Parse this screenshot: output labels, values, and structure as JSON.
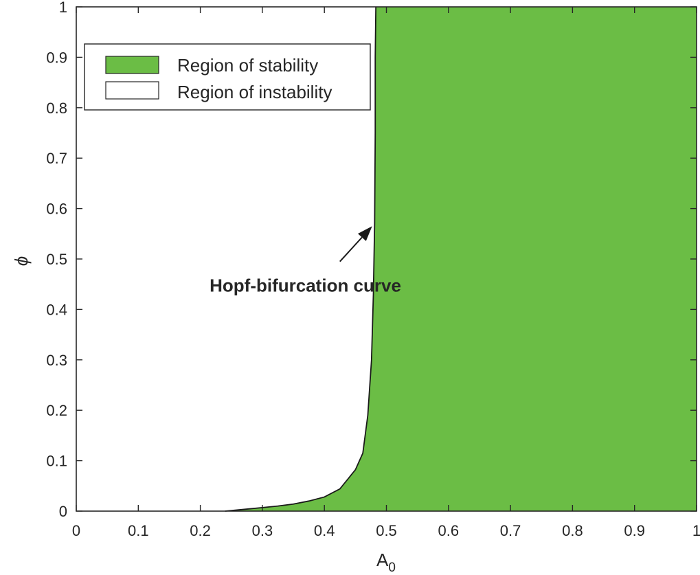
{
  "chart_data": {
    "type": "area",
    "title": "",
    "xlabel": {
      "main": "A",
      "sub": "0"
    },
    "ylabel": "ϕ",
    "xlim": [
      0,
      1
    ],
    "ylim": [
      0,
      1
    ],
    "xticks": [
      "0",
      "0.1",
      "0.2",
      "0.3",
      "0.4",
      "0.5",
      "0.6",
      "0.7",
      "0.8",
      "0.9",
      "1"
    ],
    "yticks": [
      "0",
      "0.1",
      "0.2",
      "0.3",
      "0.4",
      "0.5",
      "0.6",
      "0.7",
      "0.8",
      "0.9",
      "1"
    ],
    "grid": false,
    "legend_position": "top-left",
    "series": [
      {
        "name": "Region of stability",
        "color": "#6bbd45",
        "fill": "right-of-curve"
      },
      {
        "name": "Region of instability",
        "color": "#ffffff",
        "fill": "left-of-curve"
      }
    ],
    "hopf_curve": {
      "name": "Hopf-bifurcation curve",
      "points": [
        [
          0.24,
          0.0
        ],
        [
          0.275,
          0.004
        ],
        [
          0.3,
          0.007
        ],
        [
          0.325,
          0.01
        ],
        [
          0.35,
          0.014
        ],
        [
          0.375,
          0.02
        ],
        [
          0.4,
          0.028
        ],
        [
          0.425,
          0.044
        ],
        [
          0.45,
          0.082
        ],
        [
          0.462,
          0.115
        ],
        [
          0.47,
          0.19
        ],
        [
          0.476,
          0.3
        ],
        [
          0.479,
          0.43
        ],
        [
          0.481,
          0.57
        ],
        [
          0.482,
          0.75
        ],
        [
          0.482,
          0.9
        ],
        [
          0.483,
          1.0
        ]
      ]
    },
    "annotation": {
      "text": "Hopf-bifurcation curve",
      "text_at": [
        0.215,
        0.435
      ],
      "arrow_from": [
        0.425,
        0.495
      ],
      "arrow_to": [
        0.477,
        0.565
      ]
    }
  }
}
